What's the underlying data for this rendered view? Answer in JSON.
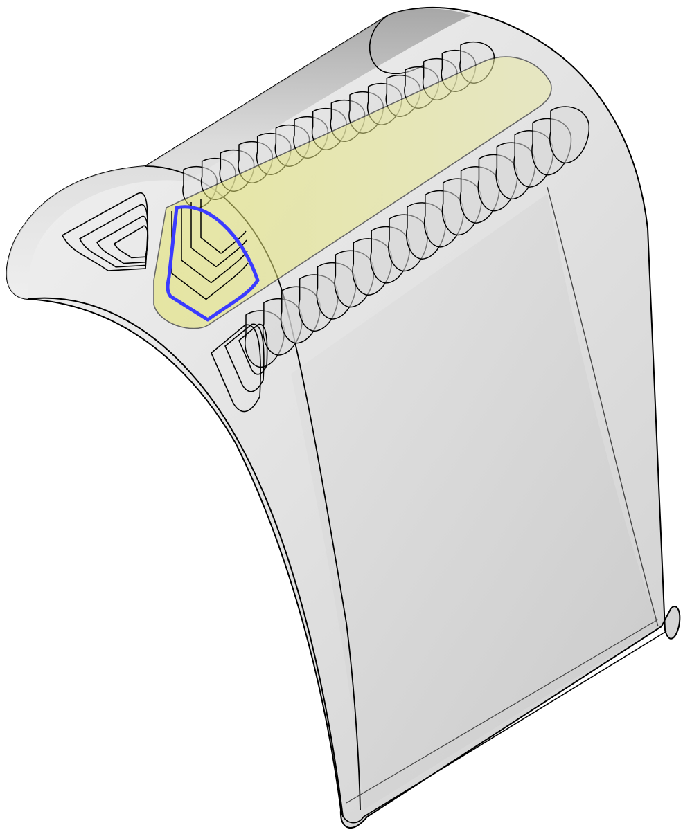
{
  "scene": {
    "description_label": "",
    "colors": {
      "background": "#ffffff",
      "shell_light": "#ececec",
      "shell_mid": "#dcdcdc",
      "shell_dark": "#9a9a9a",
      "edge": "#000000",
      "highlight_face": "#e6e67a",
      "selection": "#3b3bff"
    },
    "upper_channel_loops": 16,
    "lower_channel_loops": 18,
    "selected_loop_index": 0
  }
}
